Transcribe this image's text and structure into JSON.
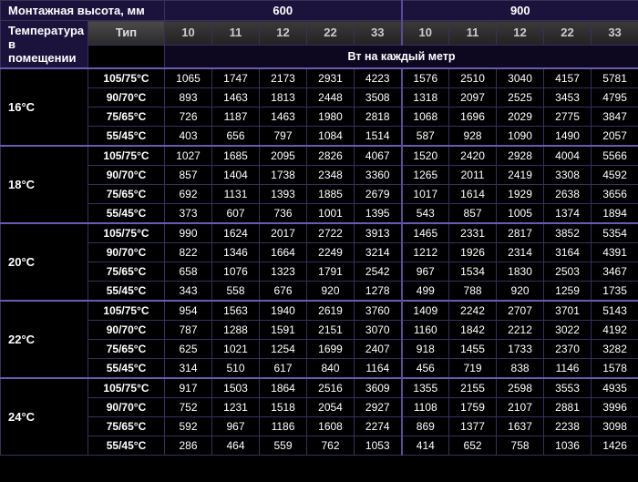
{
  "headers": {
    "mounting_height": "Монтажная высота, мм",
    "room_temp": "Температура в помещении",
    "type": "Тип",
    "per_meter": "Вт на каждый метр"
  },
  "heights": [
    "600",
    "900"
  ],
  "types": [
    "10",
    "11",
    "12",
    "22",
    "33"
  ],
  "flow_temps": [
    "105/75°C",
    "90/70°C",
    "75/65°C",
    "55/45°C"
  ],
  "room_temps": [
    "16°C",
    "18°C",
    "20°C",
    "22°C",
    "24°C"
  ],
  "data": {
    "16°C": {
      "105/75°C": [
        1065,
        1747,
        2173,
        2931,
        4223,
        1576,
        2510,
        3040,
        4157,
        5781
      ],
      "90/70°C": [
        893,
        1463,
        1813,
        2448,
        3508,
        1318,
        2097,
        2525,
        3453,
        4795
      ],
      "75/65°C": [
        726,
        1187,
        1463,
        1980,
        2818,
        1068,
        1696,
        2029,
        2775,
        3847
      ],
      "55/45°C": [
        403,
        656,
        797,
        1084,
        1514,
        587,
        928,
        1090,
        1490,
        2057
      ]
    },
    "18°C": {
      "105/75°C": [
        1027,
        1685,
        2095,
        2826,
        4067,
        1520,
        2420,
        2928,
        4004,
        5566
      ],
      "90/70°C": [
        857,
        1404,
        1738,
        2348,
        3360,
        1265,
        2011,
        2419,
        3308,
        4592
      ],
      "75/65°C": [
        692,
        1131,
        1393,
        1885,
        2679,
        1017,
        1614,
        1929,
        2638,
        3656
      ],
      "55/45°C": [
        373,
        607,
        736,
        1001,
        1395,
        543,
        857,
        1005,
        1374,
        1894
      ]
    },
    "20°C": {
      "105/75°C": [
        990,
        1624,
        2017,
        2722,
        3913,
        1465,
        2331,
        2817,
        3852,
        5354
      ],
      "90/70°C": [
        822,
        1346,
        1664,
        2249,
        3214,
        1212,
        1926,
        2314,
        3164,
        4391
      ],
      "75/65°C": [
        658,
        1076,
        1323,
        1791,
        2542,
        967,
        1534,
        1830,
        2503,
        3467
      ],
      "55/45°C": [
        343,
        558,
        676,
        920,
        1278,
        499,
        788,
        920,
        1259,
        1735
      ]
    },
    "22°C": {
      "105/75°C": [
        954,
        1563,
        1940,
        2619,
        3760,
        1409,
        2242,
        2707,
        3701,
        5143
      ],
      "90/70°C": [
        787,
        1288,
        1591,
        2151,
        3070,
        1160,
        1842,
        2212,
        3022,
        4192
      ],
      "75/65°C": [
        625,
        1021,
        1254,
        1699,
        2407,
        918,
        1455,
        1733,
        2370,
        3282
      ],
      "55/45°C": [
        314,
        510,
        617,
        840,
        1164,
        456,
        719,
        838,
        1146,
        1578
      ]
    },
    "24°C": {
      "105/75°C": [
        917,
        1503,
        1864,
        2516,
        3609,
        1355,
        2155,
        2598,
        3553,
        4935
      ],
      "90/70°C": [
        752,
        1231,
        1518,
        2054,
        2927,
        1108,
        1759,
        2107,
        2881,
        3996
      ],
      "75/65°C": [
        592,
        967,
        1186,
        1608,
        2274,
        869,
        1377,
        1637,
        2238,
        3098
      ],
      "55/45°C": [
        286,
        464,
        559,
        762,
        1053,
        414,
        652,
        758,
        1036,
        1426
      ]
    }
  },
  "style": {
    "bg": "#000000",
    "text": "#ffffff",
    "border": "#3a2e5c",
    "accent_border": "#6a5ab0",
    "header_bg": "#1c133d",
    "type_bg_grad": [
      "#4a4a4a",
      "#2a2a2a"
    ],
    "colnum_bg_grad": [
      "#3a3a3a",
      "#222222"
    ],
    "subhdr_bg": "#0d0820",
    "font_family": "Arial, sans-serif",
    "font_size_cell": 12,
    "font_size_header": 13
  }
}
